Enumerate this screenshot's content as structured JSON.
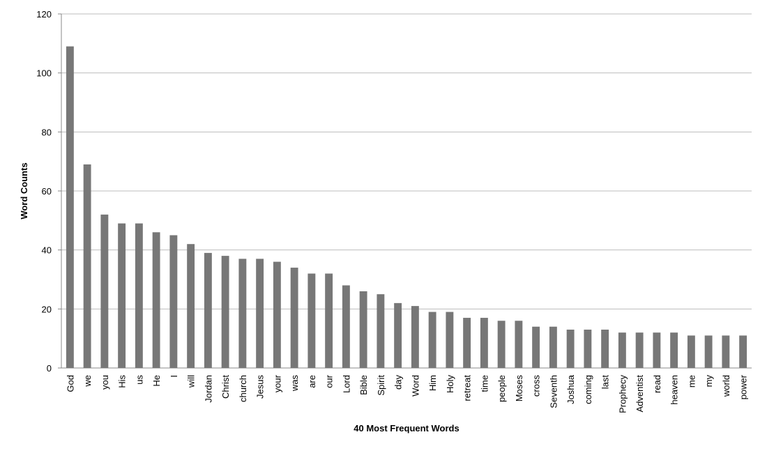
{
  "chart_data": {
    "type": "bar",
    "xlabel": "40 Most Frequent Words",
    "ylabel": "Word Counts",
    "categories": [
      "God",
      "we",
      "you",
      "His",
      "us",
      "He",
      "I",
      "will",
      "Jordan",
      "Christ",
      "church",
      "Jesus",
      "your",
      "was",
      "are",
      "our",
      "Lord",
      "Bible",
      "Spirit",
      "day",
      "Word",
      "Him",
      "Holy",
      "retreat",
      "time",
      "people",
      "Moses",
      "cross",
      "Seventh",
      "Joshua",
      "coming",
      "last",
      "Prophecy",
      "Adventist",
      "read",
      "heaven",
      "me",
      "my",
      "world",
      "power"
    ],
    "values": [
      109,
      69,
      52,
      49,
      49,
      46,
      45,
      42,
      39,
      38,
      37,
      37,
      36,
      34,
      32,
      32,
      28,
      26,
      25,
      22,
      21,
      19,
      19,
      17,
      17,
      16,
      16,
      14,
      14,
      13,
      13,
      13,
      12,
      12,
      12,
      12,
      11,
      11,
      11,
      11
    ],
    "color": "#777777",
    "ylim": [
      0,
      120
    ],
    "yticks": [
      0,
      20,
      40,
      60,
      80,
      100,
      120
    ],
    "grid": true
  }
}
